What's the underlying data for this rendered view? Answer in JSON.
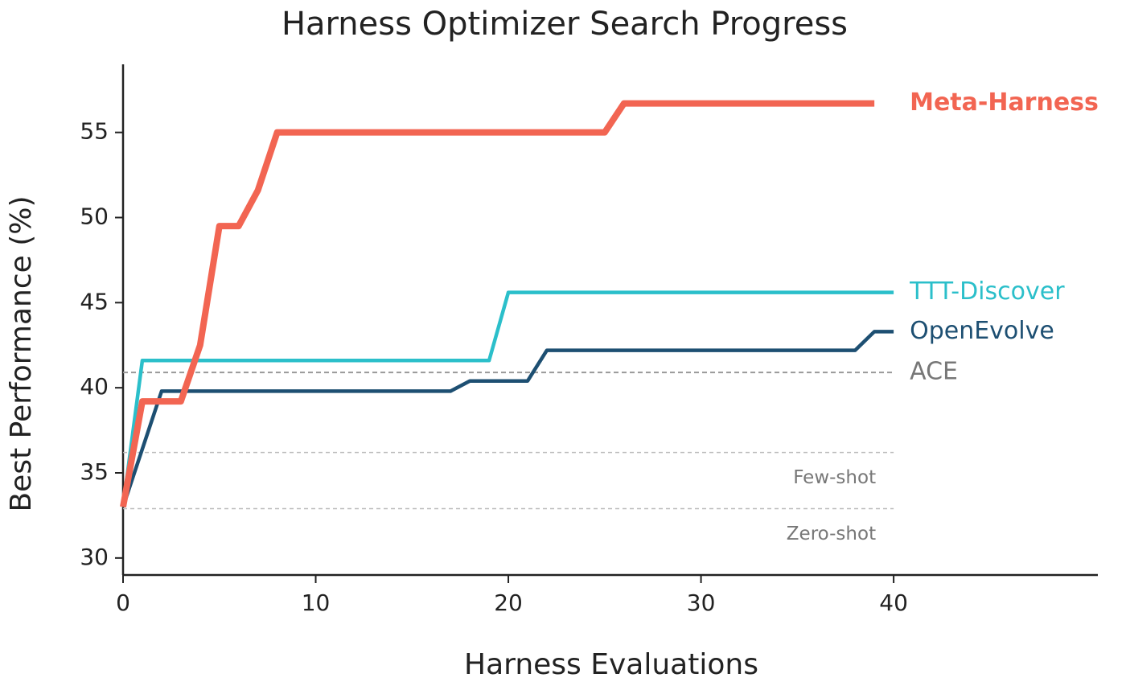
{
  "chart_data": {
    "type": "line",
    "title": "Harness Optimizer Search Progress",
    "xlabel": "Harness Evaluations",
    "ylabel": "Best Performance (%)",
    "xlim": [
      0,
      50.6
    ],
    "xticks": [
      0,
      10,
      20,
      30,
      40
    ],
    "ylim": [
      29,
      59
    ],
    "yticks": [
      30,
      35,
      40,
      45,
      50,
      55
    ],
    "grid": false,
    "series": [
      {
        "name": "Meta-Harness",
        "color": "#f26552",
        "bold": true,
        "x": [
          0,
          1,
          3,
          4,
          5,
          6,
          7,
          8,
          25,
          26,
          39
        ],
        "values": [
          33,
          39.2,
          39.2,
          42.5,
          49.5,
          49.5,
          51.6,
          55,
          55,
          56.7,
          56.7
        ]
      },
      {
        "name": "TTT-Discover",
        "color": "#2bbfca",
        "bold": false,
        "x": [
          0,
          1,
          19,
          20,
          40
        ],
        "values": [
          33,
          41.6,
          41.6,
          45.6,
          45.6
        ]
      },
      {
        "name": "OpenEvolve",
        "color": "#1d4f72",
        "bold": false,
        "x": [
          0,
          2,
          17,
          18,
          21,
          22,
          38,
          39,
          40
        ],
        "values": [
          33,
          39.8,
          39.8,
          40.4,
          40.4,
          42.2,
          42.2,
          43.3,
          43.3
        ]
      }
    ],
    "reference_lines": [
      {
        "label": "ACE",
        "value": 40.9,
        "label_position": "right"
      },
      {
        "label": "Few-shot",
        "value": 36.2,
        "label_position": "below"
      },
      {
        "label": "Zero-shot",
        "value": 32.9,
        "label_position": "below"
      }
    ]
  }
}
